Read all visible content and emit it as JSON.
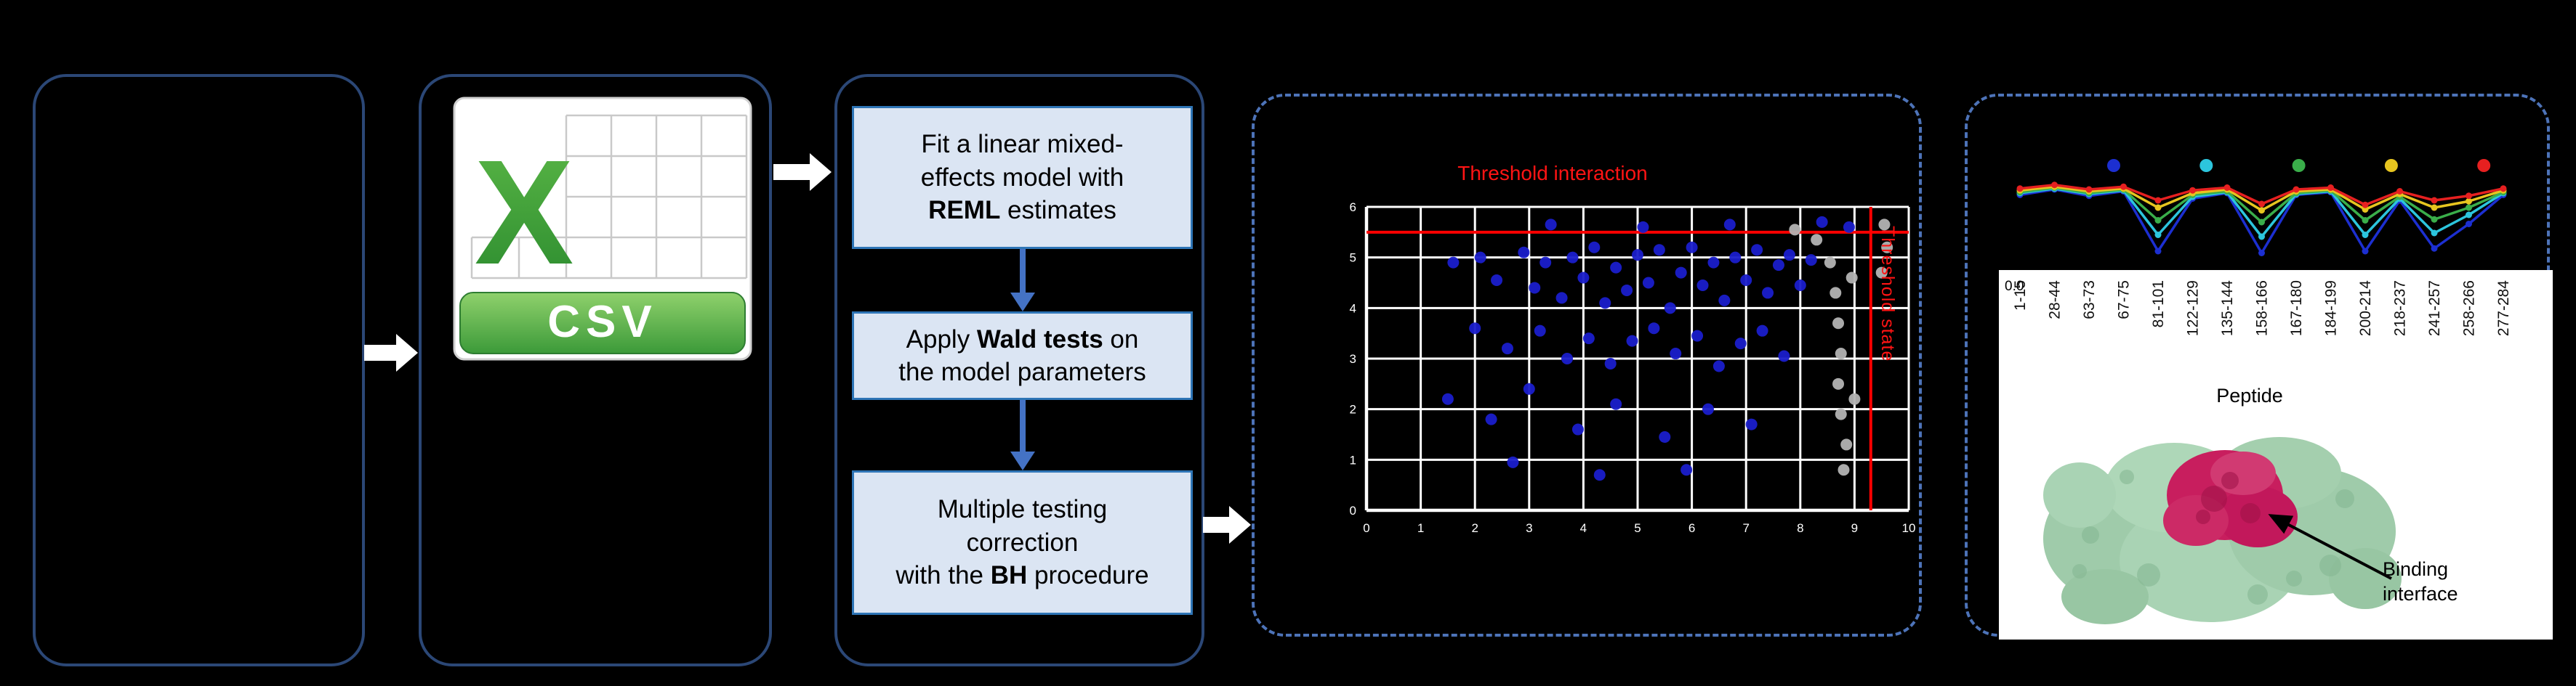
{
  "figure": {
    "csv": {
      "letter": "X",
      "label": "CSV"
    },
    "pipeline": {
      "step1": {
        "pre": "Fit a linear mixed-\neffects model with\n",
        "bold": "REML",
        "post": " estimates"
      },
      "step2": {
        "pre": "Apply ",
        "bold": "Wald tests",
        "post": " on\nthe model parameters"
      },
      "step3": {
        "pre": "Multiple testing\ncorrection\nwith the ",
        "bold": "BH",
        "post": " procedure"
      }
    },
    "annotation": "Binding interface"
  },
  "chart_data": [
    {
      "type": "scatter",
      "title": "Threshold interaction",
      "vertical_threshold_label": "Threshold state",
      "xlim": [
        0,
        10
      ],
      "ylim": [
        0,
        6
      ],
      "threshold_x": 9.3,
      "threshold_y": 5.5,
      "threshold_color": "#ff0000",
      "grid": true,
      "background": "#000000",
      "series": [
        {
          "color": "#1a1ecb",
          "points": [
            [
              1.6,
              4.9
            ],
            [
              2.1,
              5.0
            ],
            [
              2.4,
              4.55
            ],
            [
              2.9,
              5.1
            ],
            [
              3.1,
              4.4
            ],
            [
              3.3,
              4.9
            ],
            [
              3.6,
              4.2
            ],
            [
              3.8,
              5.0
            ],
            [
              4.0,
              4.6
            ],
            [
              4.2,
              5.2
            ],
            [
              4.4,
              4.1
            ],
            [
              4.6,
              4.8
            ],
            [
              4.8,
              4.35
            ],
            [
              5.0,
              5.05
            ],
            [
              5.2,
              4.5
            ],
            [
              5.4,
              5.15
            ],
            [
              5.6,
              4.0
            ],
            [
              5.8,
              4.7
            ],
            [
              6.0,
              5.2
            ],
            [
              6.2,
              4.45
            ],
            [
              6.4,
              4.9
            ],
            [
              6.6,
              4.15
            ],
            [
              6.8,
              5.0
            ],
            [
              7.0,
              4.55
            ],
            [
              7.2,
              5.15
            ],
            [
              7.4,
              4.3
            ],
            [
              7.6,
              4.85
            ],
            [
              7.8,
              5.05
            ],
            [
              8.0,
              4.45
            ],
            [
              8.2,
              4.95
            ],
            [
              2.0,
              3.6
            ],
            [
              2.6,
              3.2
            ],
            [
              3.2,
              3.55
            ],
            [
              3.7,
              3.0
            ],
            [
              4.1,
              3.4
            ],
            [
              4.5,
              2.9
            ],
            [
              4.9,
              3.35
            ],
            [
              5.3,
              3.6
            ],
            [
              5.7,
              3.1
            ],
            [
              6.1,
              3.45
            ],
            [
              6.5,
              2.85
            ],
            [
              6.9,
              3.3
            ],
            [
              7.3,
              3.55
            ],
            [
              7.7,
              3.05
            ],
            [
              1.5,
              2.2
            ],
            [
              2.3,
              1.8
            ],
            [
              3.0,
              2.4
            ],
            [
              3.9,
              1.6
            ],
            [
              4.6,
              2.1
            ],
            [
              5.5,
              1.45
            ],
            [
              6.3,
              2.0
            ],
            [
              7.1,
              1.7
            ],
            [
              2.7,
              0.95
            ],
            [
              4.3,
              0.7
            ],
            [
              5.9,
              0.8
            ],
            [
              3.4,
              5.65
            ],
            [
              5.1,
              5.6
            ],
            [
              6.7,
              5.65
            ],
            [
              8.4,
              5.7
            ],
            [
              8.9,
              5.6
            ]
          ]
        },
        {
          "color": "#b3b3b3",
          "points": [
            [
              8.55,
              4.9
            ],
            [
              8.65,
              4.3
            ],
            [
              8.7,
              3.7
            ],
            [
              8.75,
              3.1
            ],
            [
              8.7,
              2.5
            ],
            [
              8.75,
              1.9
            ],
            [
              8.85,
              1.3
            ],
            [
              8.8,
              0.8
            ],
            [
              8.95,
              4.6
            ],
            [
              9.0,
              2.2
            ],
            [
              7.9,
              5.55
            ],
            [
              8.3,
              5.35
            ],
            [
              9.55,
              5.65
            ],
            [
              9.6,
              5.2
            ],
            [
              9.5,
              4.7
            ]
          ]
        }
      ]
    },
    {
      "type": "line",
      "x_labels": [
        "1-15",
        "28-44",
        "63-73",
        "67-75",
        "81-101",
        "122-129",
        "135-144",
        "158-166",
        "167-180",
        "184-199",
        "200-214",
        "218-237",
        "241-257",
        "258-266",
        "277-284"
      ],
      "xlabel": "Peptide",
      "y_tick_label": "0.0",
      "legend_dot_colors": [
        "#1c2fd1",
        "#2cc5dd",
        "#3aae4a",
        "#e7c51f",
        "#e62020"
      ],
      "series": [
        {
          "color": "#1c2fd1",
          "values": [
            0.74,
            0.8,
            0.73,
            0.78,
            0.12,
            0.7,
            0.76,
            0.1,
            0.74,
            0.77,
            0.12,
            0.68,
            0.15,
            0.42,
            0.74
          ]
        },
        {
          "color": "#2cc5dd",
          "values": [
            0.76,
            0.81,
            0.75,
            0.79,
            0.3,
            0.72,
            0.77,
            0.28,
            0.75,
            0.78,
            0.3,
            0.7,
            0.32,
            0.52,
            0.76
          ]
        },
        {
          "color": "#3aae4a",
          "values": [
            0.77,
            0.82,
            0.76,
            0.8,
            0.46,
            0.74,
            0.78,
            0.44,
            0.76,
            0.79,
            0.46,
            0.72,
            0.47,
            0.6,
            0.77
          ]
        },
        {
          "color": "#e7c51f",
          "values": [
            0.79,
            0.83,
            0.78,
            0.81,
            0.6,
            0.76,
            0.8,
            0.57,
            0.78,
            0.8,
            0.58,
            0.75,
            0.6,
            0.67,
            0.79
          ]
        },
        {
          "color": "#e62020",
          "values": [
            0.81,
            0.85,
            0.8,
            0.83,
            0.68,
            0.79,
            0.82,
            0.64,
            0.8,
            0.82,
            0.63,
            0.78,
            0.68,
            0.73,
            0.81
          ]
        }
      ]
    }
  ]
}
